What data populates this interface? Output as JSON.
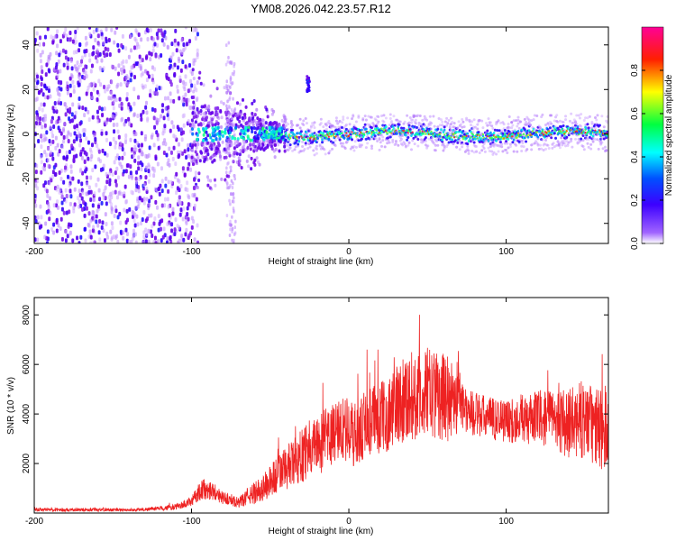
{
  "title": "YM08.2026.042.23.57.R12",
  "chart_data": [
    {
      "type": "heatmap",
      "name": "spectrogram",
      "title": "YM08.2026.042.23.57.R12",
      "xlabel": "Height of straight line (km)",
      "ylabel": "Frequency (Hz)",
      "xlim": [
        -200,
        165
      ],
      "ylim": [
        -49,
        48
      ],
      "xticks": [
        -200,
        -100,
        0,
        100
      ],
      "yticks": [
        -40,
        -20,
        0,
        20,
        40
      ],
      "xtick_labels": [
        "-200",
        "-100",
        "0",
        "100"
      ],
      "ytick_labels": [
        "-40",
        "-20",
        "0",
        "20",
        "40"
      ],
      "band_center_hz": 0,
      "band_halfwidth_hz": 3,
      "noise_region_km": [
        -200,
        -100
      ],
      "transition_region_km": [
        -100,
        -40
      ],
      "colorbar": {
        "label": "Normalized spectral amplitude",
        "range": [
          0,
          1
        ],
        "ticks": [
          0,
          0.2,
          0.4,
          0.6,
          0.8
        ],
        "tick_labels": [
          "0.0",
          "0.2",
          "0.4",
          "0.6",
          "0.8"
        ],
        "stops": [
          "#ffffff",
          "#4b00ff",
          "#0000ff",
          "#00ffff",
          "#00ff00",
          "#ffff00",
          "#ff0000",
          "#ff00a0"
        ]
      }
    },
    {
      "type": "line",
      "name": "snr",
      "xlabel": "Height of straight line (km)",
      "ylabel": "SNR (10 * v/v)",
      "xlim": [
        -200,
        165
      ],
      "ylim": [
        0,
        8700
      ],
      "xticks": [
        -200,
        -100,
        0,
        100
      ],
      "yticks": [
        2000,
        4000,
        6000,
        8000
      ],
      "xtick_labels": [
        "-200",
        "-100",
        "0",
        "100"
      ],
      "ytick_labels": [
        "2000",
        "4000",
        "6000",
        "8000"
      ],
      "color": "#ee2222",
      "x": [
        -200,
        -180,
        -160,
        -140,
        -120,
        -110,
        -100,
        -95,
        -90,
        -85,
        -80,
        -75,
        -70,
        -65,
        -60,
        -55,
        -50,
        -45,
        -40,
        -35,
        -30,
        -25,
        -20,
        -15,
        -10,
        -5,
        0,
        5,
        10,
        15,
        20,
        25,
        30,
        35,
        40,
        45,
        50,
        55,
        60,
        65,
        70,
        75,
        80,
        85,
        90,
        95,
        100,
        105,
        110,
        115,
        120,
        125,
        130,
        135,
        140,
        145,
        150,
        155,
        160,
        165
      ],
      "values": [
        150,
        120,
        140,
        120,
        180,
        250,
        450,
        900,
        1000,
        850,
        600,
        550,
        400,
        650,
        800,
        1000,
        1250,
        1600,
        1800,
        2000,
        2300,
        2700,
        2800,
        2900,
        3200,
        3400,
        3300,
        3100,
        3500,
        3800,
        3800,
        4000,
        4300,
        4700,
        4700,
        4600,
        4900,
        4800,
        4700,
        4600,
        4700,
        4100,
        4000,
        3900,
        3800,
        3800,
        3750,
        3700,
        3800,
        3750,
        3900,
        3800,
        3900,
        3700,
        3600,
        3700,
        3800,
        3500,
        3400,
        3500
      ],
      "spread": [
        80,
        60,
        70,
        60,
        80,
        120,
        200,
        400,
        450,
        350,
        250,
        250,
        200,
        350,
        450,
        550,
        700,
        800,
        900,
        1000,
        1100,
        1200,
        1200,
        1300,
        1300,
        1300,
        1400,
        1300,
        1400,
        1500,
        1500,
        1500,
        1700,
        1800,
        1800,
        1800,
        1800,
        1800,
        1800,
        1700,
        1500,
        1000,
        900,
        900,
        900,
        900,
        900,
        900,
        1000,
        1000,
        1100,
        1100,
        1200,
        1300,
        1400,
        1500,
        1600,
        1600,
        1700,
        1700
      ]
    }
  ]
}
